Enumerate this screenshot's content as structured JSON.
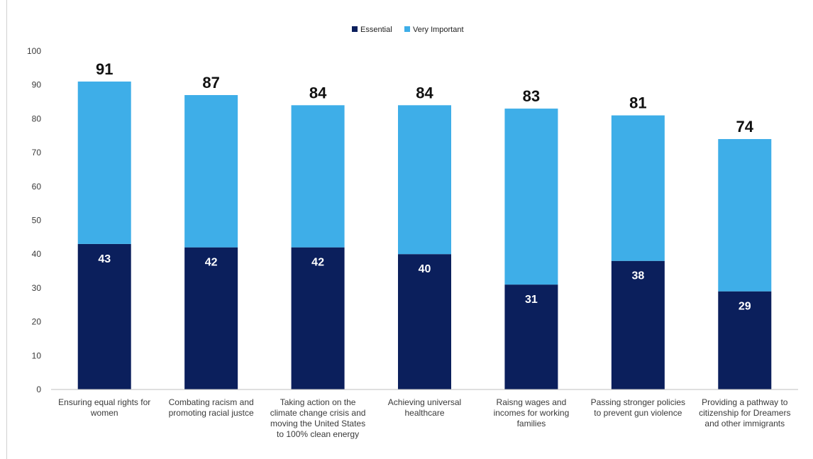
{
  "chart_data": {
    "type": "bar",
    "stacked": true,
    "title": "",
    "xlabel": "",
    "ylabel": "",
    "ylim": [
      0,
      100
    ],
    "yticks": [
      0,
      10,
      20,
      30,
      40,
      50,
      60,
      70,
      80,
      90,
      100
    ],
    "grid": false,
    "legend_position": "top",
    "categories": [
      [
        "Ensuring equal rights for",
        "women"
      ],
      [
        "Combating racism and",
        "promoting racial justce"
      ],
      [
        "Taking action on the",
        "climate change crisis and",
        "moving the United States",
        "to 100% clean energy"
      ],
      [
        "Achieving universal",
        "healthcare"
      ],
      [
        "Raisng wages and",
        "incomes for working",
        "families"
      ],
      [
        "Passing stronger policies",
        "to prevent gun violence"
      ],
      [
        "Providing a pathway to",
        "citizenship for Dreamers",
        "and other immigrants"
      ]
    ],
    "series": [
      {
        "name": "Essential",
        "color": "#0b1f5c",
        "values": [
          43,
          42,
          42,
          40,
          31,
          38,
          29
        ]
      },
      {
        "name": "Very Important",
        "color": "#3eaee8",
        "values": [
          48,
          45,
          42,
          44,
          52,
          43,
          45
        ]
      }
    ],
    "totals": [
      91,
      87,
      84,
      84,
      83,
      81,
      74
    ]
  }
}
